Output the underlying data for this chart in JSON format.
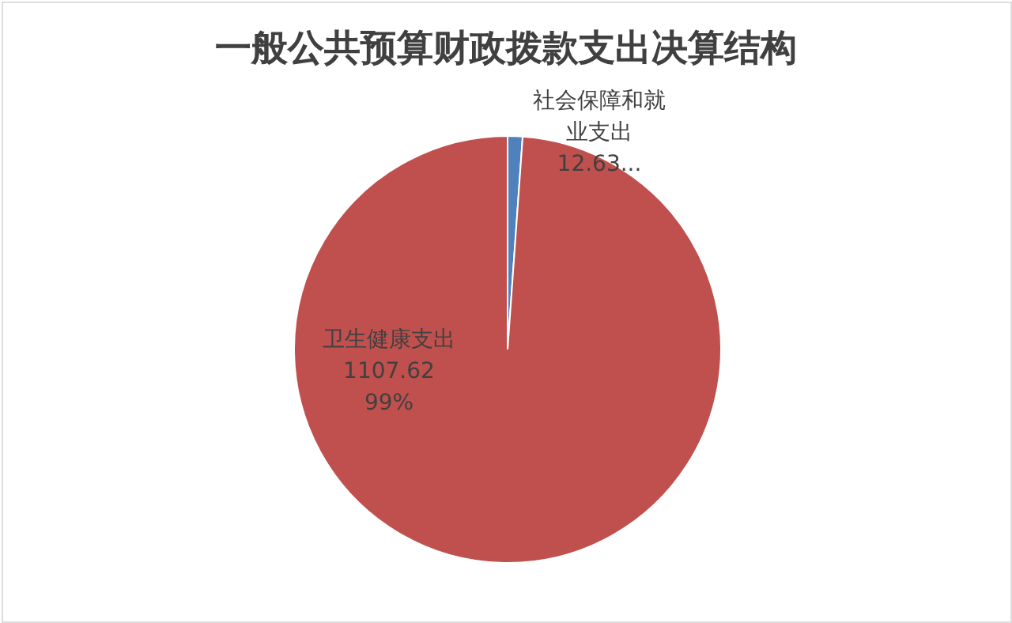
{
  "chart_data": {
    "type": "pie",
    "title": "一般公共预算财政拨款支出决算结构",
    "categories": [
      "社会保障和就业支出",
      "卫生健康支出"
    ],
    "values": [
      12.63,
      1107.62
    ],
    "colors": [
      "#4f81bd",
      "#c0504d"
    ],
    "value_labels": [
      "12.63...",
      "1107.62\n99%"
    ],
    "legend": false
  }
}
